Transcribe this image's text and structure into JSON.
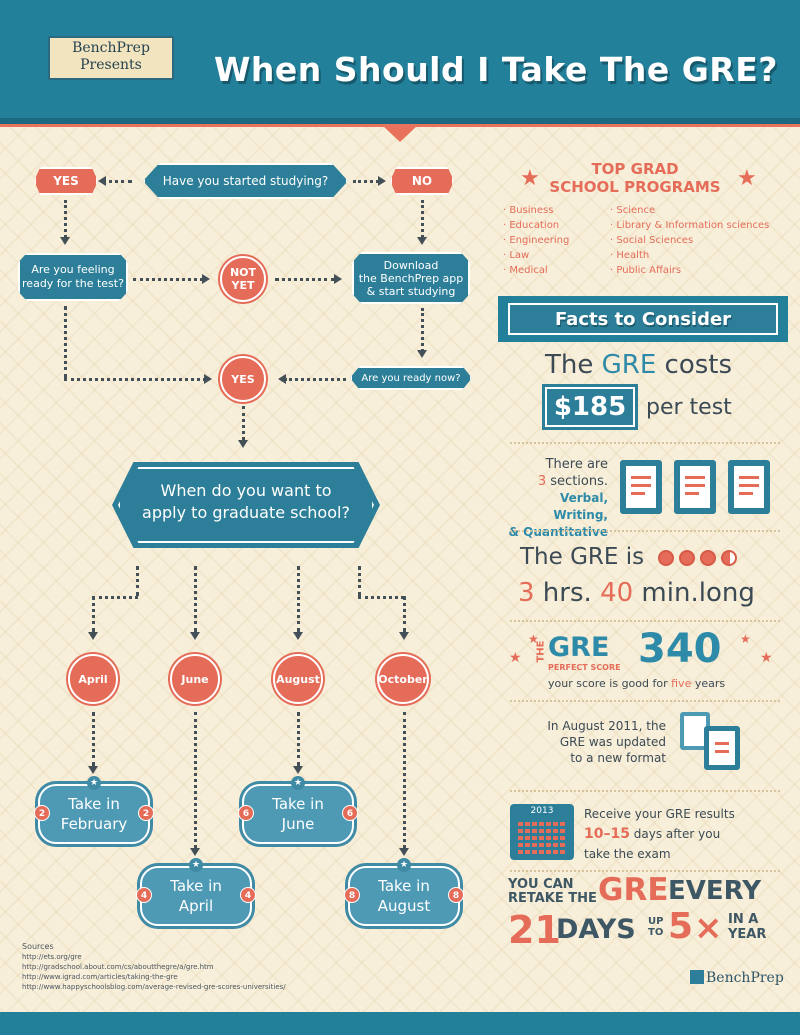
{
  "header": {
    "ribbon_line1": "BenchPrep",
    "ribbon_line2": "Presents",
    "title": "When Should I Take The GRE?"
  },
  "flow": {
    "yes": "YES",
    "no": "NO",
    "q_started": "Have you started studying?",
    "q_ready_line1": "Are you feeling",
    "q_ready_line2": "ready for the test?",
    "not_yet_line1": "NOT",
    "not_yet_line2": "YET",
    "download_line1": "Download",
    "download_line2": "the BenchPrep app",
    "download_line3": "& start studying",
    "yes_circle": "YES",
    "q_ready_now": "Are you ready now?",
    "q_apply_line1": "When do you want to",
    "q_apply_line2": "apply to graduate school?"
  },
  "months": {
    "april": "April",
    "june": "June",
    "august": "August",
    "october": "October"
  },
  "tickets": {
    "feb_line1": "Take in",
    "feb_line2": "February",
    "feb_badge": "2",
    "june_line1": "Take in",
    "june_line2": "June",
    "june_badge": "6",
    "april_line1": "Take in",
    "april_line2": "April",
    "april_badge": "4",
    "aug_line1": "Take in",
    "aug_line2": "August",
    "aug_badge": "8"
  },
  "sources": {
    "heading": "Sources",
    "s1": "http://ets.org/gre",
    "s2": "http://gradschool.about.com/cs/aboutthegre/a/gre.htm",
    "s3": "http://www.igrad.com/articles/taking-the-gre",
    "s4": "http://www.happyschoolsblog.com/average-revised-gre-scores-universities/"
  },
  "programs": {
    "heading_line1": "TOP GRAD",
    "heading_line2": "SCHOOL PROGRAMS",
    "col1": [
      "Business",
      "Education",
      "Engineering",
      "Law",
      "Medical"
    ],
    "col2": [
      "Science",
      "Library & Information sciences",
      "Social Sciences",
      "Health",
      "Public Affairs"
    ]
  },
  "facts": {
    "banner": "Facts to Consider",
    "cost_prefix": "The ",
    "cost_gre": "GRE",
    "cost_suffix": " costs",
    "price": "$185",
    "per_test": "per test",
    "sections_l1": "There are",
    "sections_num": "3",
    "sections_l2": " sections.",
    "sections_v": "Verbal,",
    "sections_w": "Writing,",
    "sections_q": "& Quantitative",
    "long_l1": "The GRE is",
    "long_hrs_num": "3",
    "long_hrs": " hrs. ",
    "long_min_num": "40",
    "long_min": " min.long",
    "score_the": "THE",
    "score_gre": "GRE",
    "score_perfect": "PERFECT SCORE",
    "score_num": "340",
    "score_good": "your score is good for ",
    "score_five": "five",
    "score_years": " years",
    "aug_l1": "In August 2011, the",
    "aug_l2": "GRE was updated",
    "aug_l3": "to a new format",
    "cal_year": "2013",
    "results_l1": "Receive your GRE results",
    "results_days": "10–15",
    "results_l2": " days after you",
    "results_l3": "take the exam",
    "retake_you_can": "YOU CAN",
    "retake_retake": "RETAKE THE",
    "retake_gre": "GRE",
    "retake_every": "EVERY",
    "retake_21": "21",
    "retake_days": "DAYS",
    "retake_up": "UP",
    "retake_to": "TO",
    "retake_5": "5",
    "retake_x": "×",
    "retake_in_a": "IN A",
    "retake_year": "YEAR"
  },
  "logo": "BenchPrep",
  "colors": {
    "teal": "#23809b",
    "coral": "#e46c58",
    "cream": "#f8efda"
  }
}
